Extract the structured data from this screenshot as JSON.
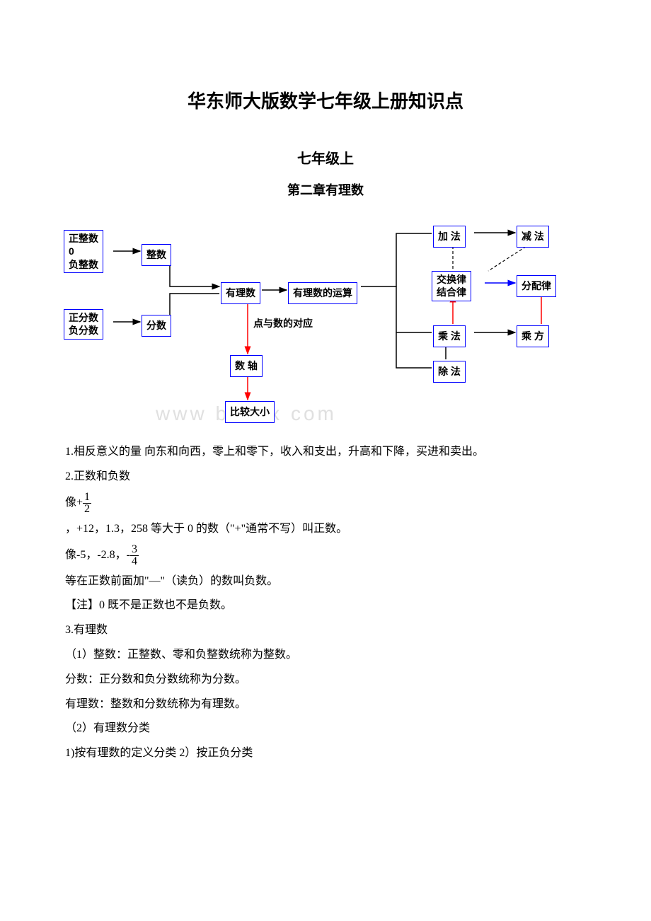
{
  "title": "华东师大版数学七年级上册知识点",
  "subtitle": "七年级上",
  "chapter": "第二章有理数",
  "watermark": "www bdocx com",
  "diagram": {
    "type": "flowchart",
    "border_color": "#0000ff",
    "line_colors": {
      "black": "#000000",
      "red": "#ff0000",
      "blue": "#0000ff"
    },
    "nodes": {
      "pos_int_group": "正整数\n0\n负整数",
      "frac_group": "正分数\n负分数",
      "zhengshu": "整数",
      "fenshu": "分数",
      "youlishu": "有理数",
      "yunsuan": "有理数的运算",
      "point_corr": "点与数的对应",
      "shuzhou": "数 轴",
      "bijiao": "比较大小",
      "jiafa": "加 法",
      "jianfa": "减 法",
      "jiaohuan": "交换律\n结合律",
      "fenpei": "分配律",
      "chengfa": "乘 法",
      "chengfang": "乘 方",
      "chufa": "除 法"
    }
  },
  "body": {
    "p1": "1.相反意义的量 向东和向西，零上和零下，收入和支出，升高和下降，买进和卖出。",
    "p2": "2.正数和负数",
    "p3_prefix": "像+",
    "frac1_num": "1",
    "frac1_den": "2",
    "p4": "，+12，1.3，258 等大于 0 的数（\"+\"通常不写）叫正数。",
    "p5_prefix": "像-5，-2.8，-",
    "frac2_num": "3",
    "frac2_den": "4",
    "p6": "等在正数前面加\"—\"（读负）的数叫负数。",
    "p7": "【注】0 既不是正数也不是负数。",
    "p8": "3.有理数",
    "p9": "（1）整数：正整数、零和负整数统称为整数。",
    "p10": "分数：正分数和负分数统称为分数。",
    "p11": "有理数：整数和分数统称为有理数。",
    "p12": "（2）有理数分类",
    "p13": "1)按有理数的定义分类 2）按正负分类"
  }
}
